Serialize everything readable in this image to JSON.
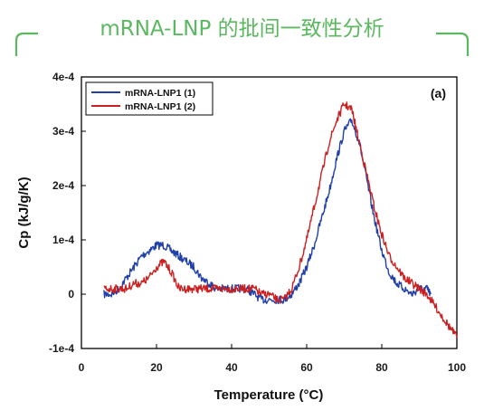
{
  "header": {
    "title": "mRNA-LNP 的批间一致性分析",
    "accent_color": "#5cb860"
  },
  "chart_data": {
    "type": "line",
    "panel_label": "(a)",
    "xlabel": "Temperature (°C)",
    "ylabel": "Cp (kJ/g/K)",
    "xlim": [
      0,
      100
    ],
    "ylim": [
      -0.0001,
      0.0004
    ],
    "x_ticks": [
      0,
      20,
      40,
      60,
      80,
      100
    ],
    "x_tick_labels": [
      "0",
      "20",
      "40",
      "60",
      "80",
      "100"
    ],
    "y_ticks": [
      -0.0001,
      0,
      0.0001,
      0.0002,
      0.0003,
      0.0004
    ],
    "y_tick_labels": [
      "-1e-4",
      "0",
      "1e-4",
      "2e-4",
      "3e-4",
      "4e-4"
    ],
    "grid": false,
    "legend_position": "top-left",
    "series": [
      {
        "name": "mRNA-LNP1 (1)",
        "color": "#2040a8",
        "x": [
          6,
          8,
          10,
          12,
          14,
          16,
          18,
          20,
          22,
          24,
          26,
          28,
          30,
          32,
          34,
          36,
          38,
          40,
          42,
          44,
          46,
          48,
          50,
          52,
          54,
          56,
          58,
          60,
          62,
          64,
          66,
          68,
          70,
          72,
          74,
          76,
          78,
          80,
          82,
          84,
          86,
          88,
          90,
          92,
          93
        ],
        "y": [
          0.0,
          0.0,
          1e-05,
          3e-05,
          5e-05,
          7e-05,
          8e-05,
          9e-05,
          9e-05,
          8e-05,
          7e-05,
          6e-05,
          5e-05,
          3e-05,
          2e-05,
          1e-05,
          1e-05,
          1e-05,
          1e-05,
          1e-05,
          0.0,
          -1e-05,
          -1e-05,
          -1e-05,
          -1e-05,
          0.0,
          2e-05,
          5e-05,
          9e-05,
          0.00014,
          0.00019,
          0.00025,
          0.0003,
          0.00032,
          0.00028,
          0.00021,
          0.00014,
          8e-05,
          4e-05,
          2e-05,
          1e-05,
          0.0,
          1e-05,
          1e-05,
          0.0
        ]
      },
      {
        "name": "mRNA-LNP1 (2)",
        "color": "#cc2020",
        "x": [
          6,
          8,
          10,
          12,
          14,
          16,
          18,
          20,
          22,
          24,
          26,
          28,
          30,
          32,
          34,
          36,
          38,
          40,
          42,
          44,
          46,
          48,
          50,
          52,
          54,
          56,
          58,
          60,
          62,
          64,
          66,
          68,
          70,
          72,
          74,
          76,
          78,
          80,
          82,
          84,
          86,
          88,
          90,
          92,
          94,
          96,
          98,
          100
        ],
        "y": [
          1e-05,
          1e-05,
          1e-05,
          1e-05,
          2e-05,
          2e-05,
          3e-05,
          5e-05,
          6e-05,
          4e-05,
          1e-05,
          1e-05,
          1e-05,
          1e-05,
          1e-05,
          1e-05,
          1e-05,
          1e-05,
          1e-05,
          1e-05,
          1e-05,
          0.0,
          0.0,
          -1e-05,
          -1e-05,
          1e-05,
          5e-05,
          0.0001,
          0.00016,
          0.00022,
          0.00028,
          0.00032,
          0.00035,
          0.00034,
          0.00028,
          0.00022,
          0.00016,
          0.00011,
          7e-05,
          5e-05,
          3e-05,
          2e-05,
          1e-05,
          0.0,
          -2e-05,
          -4e-05,
          -6e-05,
          -8e-05
        ]
      }
    ]
  }
}
